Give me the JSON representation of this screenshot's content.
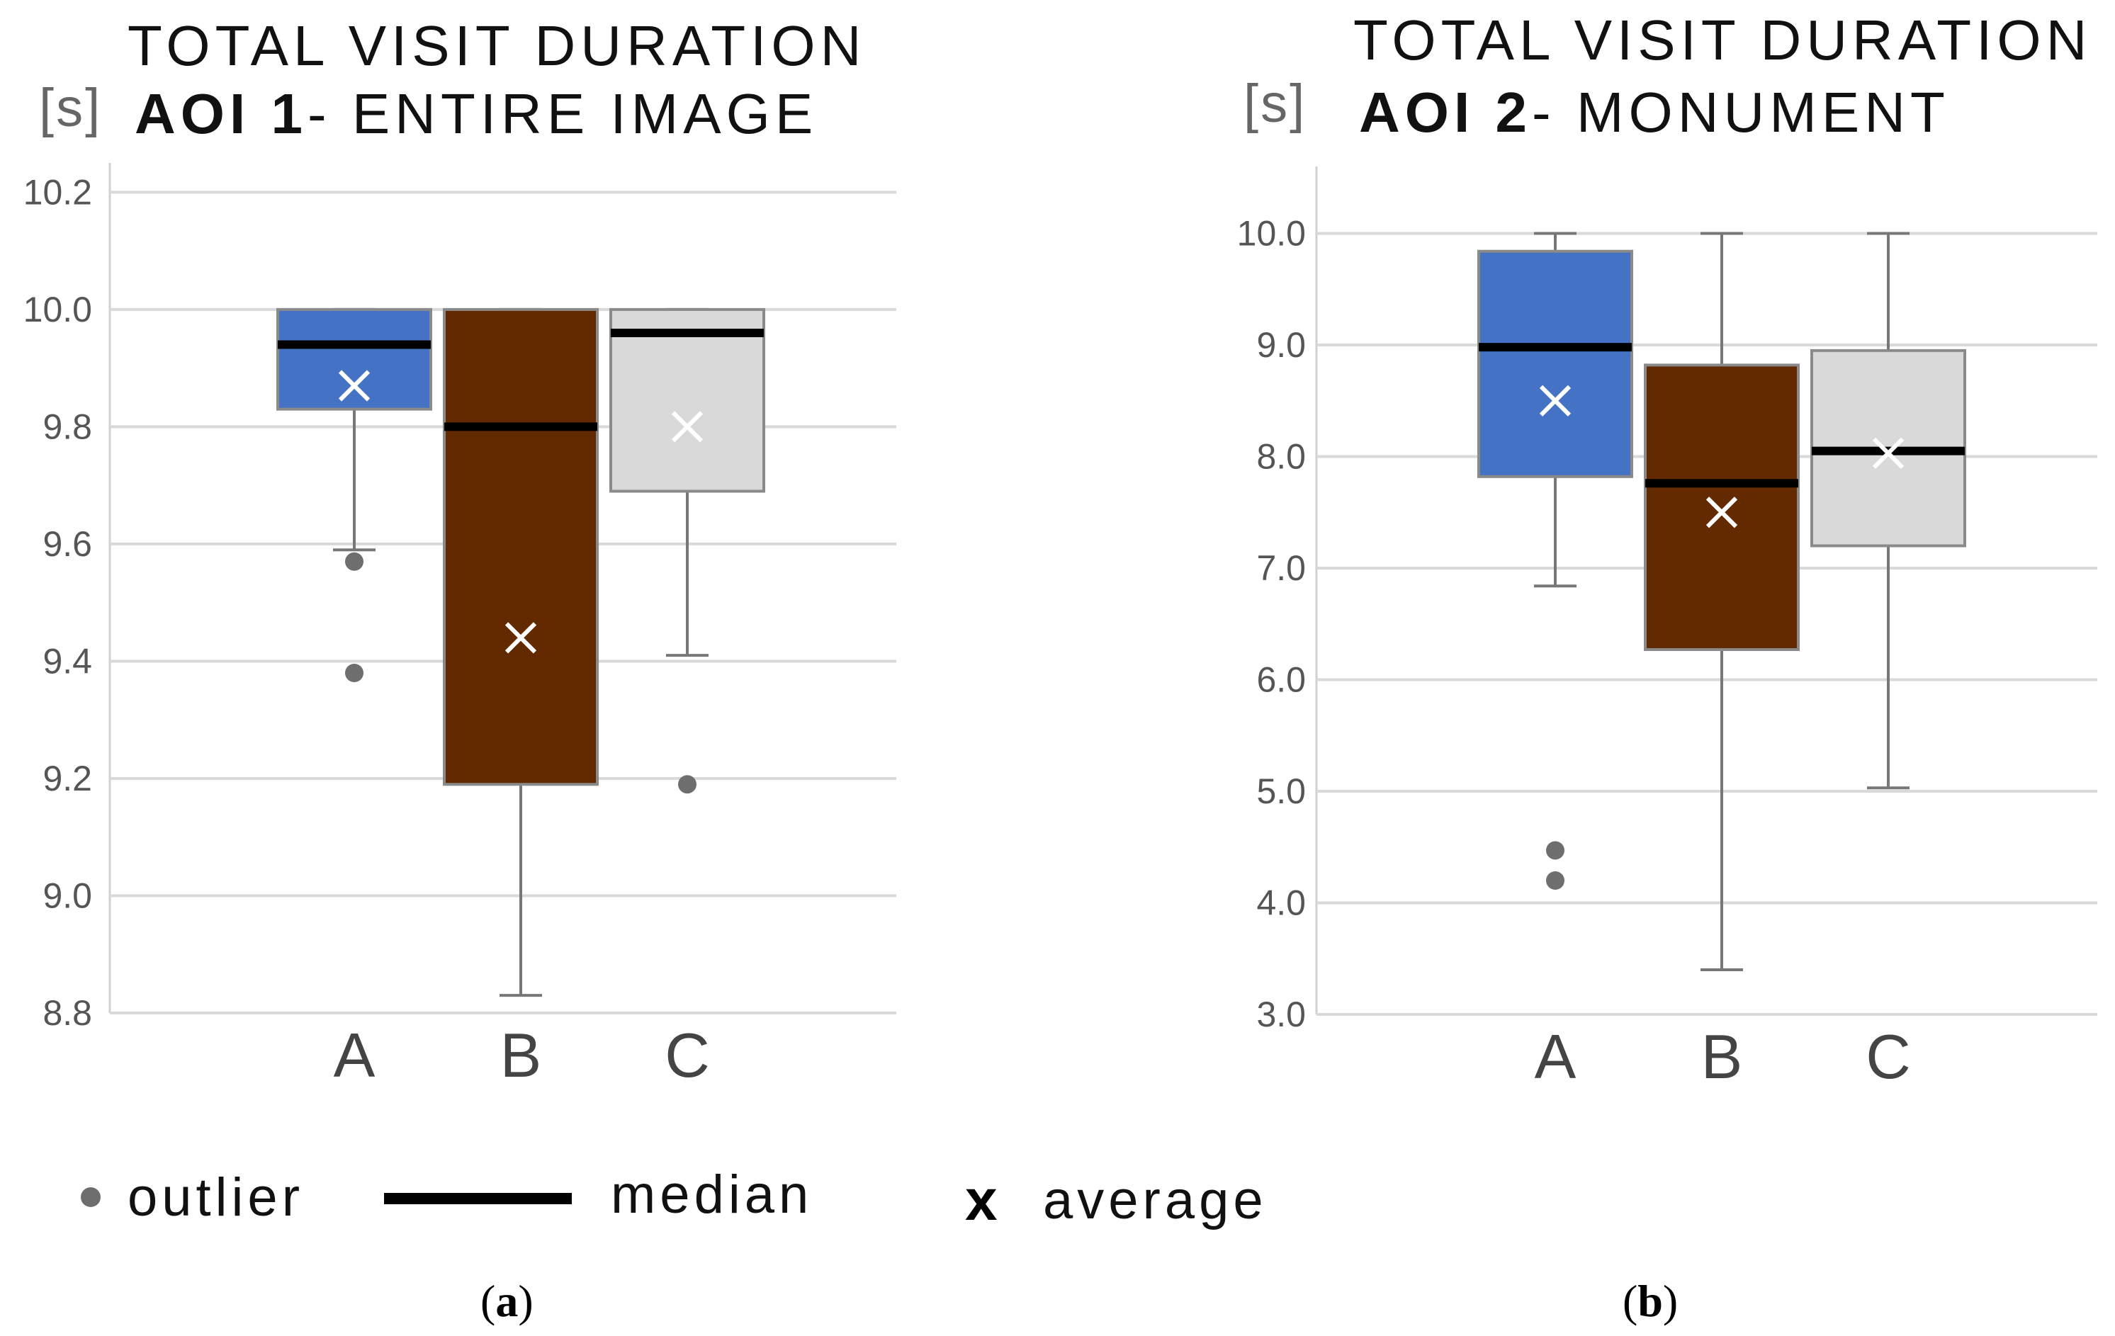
{
  "chart_data": [
    {
      "type": "boxplot",
      "panel": "(a)",
      "panel_letter": "a",
      "title_line1": "TOTAL VISIT DURATION",
      "title_bold": "AOI 1",
      "title_rest": "- ENTIRE IMAGE",
      "unit": "[s]",
      "ylim": [
        8.8,
        10.25
      ],
      "yticks": [
        8.8,
        9.0,
        9.2,
        9.4,
        9.6,
        9.8,
        10.0,
        10.2
      ],
      "ytick_labels": [
        "8.8",
        "9.0",
        "9.2",
        "9.4",
        "9.6",
        "9.8",
        "10.0",
        "10.2"
      ],
      "categories": [
        "A",
        "B",
        "C"
      ],
      "series": [
        {
          "name": "A",
          "color": "#4472C4",
          "q1": 9.83,
          "median": 9.94,
          "q3": 10.0,
          "whisker_low": 9.59,
          "whisker_high": 10.0,
          "mean": 9.87,
          "outliers": [
            9.57,
            9.38
          ]
        },
        {
          "name": "B",
          "color": "#632A00",
          "q1": 9.19,
          "median": 9.8,
          "q3": 10.0,
          "whisker_low": 8.83,
          "whisker_high": 10.0,
          "mean": 9.44,
          "outliers": []
        },
        {
          "name": "C",
          "color": "#D9D9D9",
          "q1": 9.69,
          "median": 9.96,
          "q3": 10.0,
          "whisker_low": 9.41,
          "whisker_high": 10.0,
          "mean": 9.8,
          "outliers": [
            9.19
          ]
        }
      ]
    },
    {
      "type": "boxplot",
      "panel": "(b)",
      "panel_letter": "b",
      "title_line1": "TOTAL VISIT DURATION",
      "title_bold": "AOI 2",
      "title_rest": "- MONUMENT",
      "unit": "[s]",
      "ylim": [
        3.0,
        10.6
      ],
      "yticks": [
        3.0,
        4.0,
        5.0,
        6.0,
        7.0,
        8.0,
        9.0,
        10.0
      ],
      "ytick_labels": [
        "3.0",
        "4.0",
        "5.0",
        "6.0",
        "7.0",
        "8.0",
        "9.0",
        "10.0"
      ],
      "categories": [
        "A",
        "B",
        "C"
      ],
      "series": [
        {
          "name": "A",
          "color": "#4472C4",
          "q1": 7.82,
          "median": 8.98,
          "q3": 9.84,
          "whisker_low": 6.84,
          "whisker_high": 10.0,
          "mean": 8.5,
          "outliers": [
            4.47,
            4.2
          ]
        },
        {
          "name": "B",
          "color": "#632A00",
          "q1": 6.27,
          "median": 7.76,
          "q3": 8.82,
          "whisker_low": 3.4,
          "whisker_high": 10.0,
          "mean": 7.5,
          "outliers": []
        },
        {
          "name": "C",
          "color": "#D9D9D9",
          "q1": 7.2,
          "median": 8.05,
          "q3": 8.95,
          "whisker_low": 5.03,
          "whisker_high": 10.0,
          "mean": 8.03,
          "outliers": []
        }
      ]
    }
  ],
  "legend": {
    "outlier": "outlier",
    "median": "median",
    "average_symbol": "x",
    "average": "average"
  }
}
